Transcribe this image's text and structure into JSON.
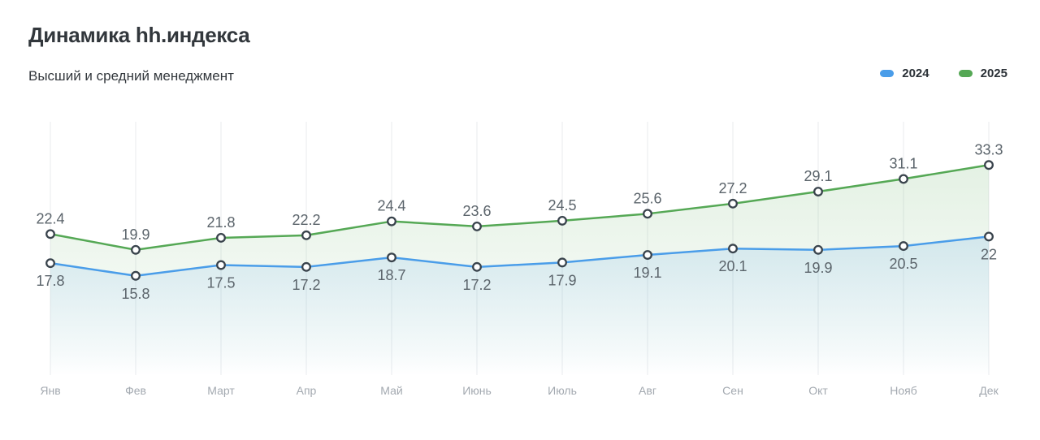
{
  "page": {
    "title": "Динамика hh.индекса",
    "subtitle": "Высший и средний менеджмент"
  },
  "chart_data": {
    "type": "line",
    "title": "Динамика hh.индекса",
    "subtitle": "Высший и средний менеджмент",
    "categories": [
      "Янв",
      "Фев",
      "Март",
      "Апр",
      "Май",
      "Июнь",
      "Июль",
      "Авг",
      "Сен",
      "Окт",
      "Нояб",
      "Дек"
    ],
    "series": [
      {
        "name": "2024",
        "color": "#4a9de9",
        "label_position": "below",
        "values": [
          17.8,
          15.8,
          17.5,
          17.2,
          18.7,
          17.2,
          17.9,
          19.1,
          20.1,
          19.9,
          20.5,
          22
        ]
      },
      {
        "name": "2025",
        "color": "#55a855",
        "label_position": "above",
        "values": [
          22.4,
          19.9,
          21.8,
          22.2,
          24.4,
          23.6,
          24.5,
          25.6,
          27.2,
          29.1,
          31.1,
          33.3
        ]
      }
    ],
    "ylim": [
      0,
      40
    ],
    "grid": "vertical-only",
    "legend_position": "top-right",
    "markers": "white-circle-dark-outline",
    "area_fill": "gradient-under-line",
    "data_labels": true,
    "xlabel": "",
    "ylabel": ""
  },
  "colors": {
    "background": "#ffffff",
    "title_text": "#32373c",
    "subtitle_text": "#32373c",
    "legend_text": "#2b3137",
    "value_label": "#5b646b",
    "month_label": "#a3a9b0",
    "gridline": "#e9ebee",
    "marker_stroke": "#39434c",
    "marker_fill": "#ffffff"
  }
}
